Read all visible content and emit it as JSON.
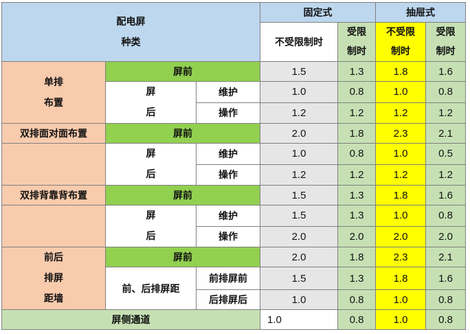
{
  "header": {
    "type_line1": "配电屏",
    "type_line2": "种类",
    "fixed": "固定式",
    "drawer": "抽屉式",
    "unlimited": "不受限制时",
    "limited_line1": "受限",
    "limited_line2": "制时",
    "unlimited2_line1": "不受限",
    "unlimited2_line2": "制时",
    "limited2_line1": "受限",
    "limited2_line2": "制时"
  },
  "labels": {
    "front": "屏前",
    "back_1": "屏",
    "back_2": "后",
    "maintain": "维护",
    "operate": "操作"
  },
  "groups": {
    "single": {
      "line1": "单排",
      "line2": "布置"
    },
    "face_to_face": "双排面对面布置",
    "back_to_back": "双排背靠背布置",
    "wall": {
      "line1": "前后",
      "line2": "排屏",
      "line3": "距墙",
      "between": "前、后排屏距",
      "front_row": "前排屏前",
      "back_row": "后排屏后"
    },
    "side": "屏侧通道"
  },
  "rows": [
    [
      "1.5",
      "1.3",
      "1.8",
      "1.6"
    ],
    [
      "1.0",
      "0.8",
      "1.0",
      "0.8"
    ],
    [
      "1.2",
      "1.2",
      "1.2",
      "1.2"
    ],
    [
      "2.0",
      "1.8",
      "2.3",
      "2.1"
    ],
    [
      "1.0",
      "0.8",
      "1.0",
      "0.5"
    ],
    [
      "1.2",
      "1.2",
      "1.2",
      "1.2"
    ],
    [
      "1.5",
      "1.3",
      "1.8",
      "1.6"
    ],
    [
      "1.5",
      "1.3",
      "1.0",
      "0.8"
    ],
    [
      "2.0",
      "2.0",
      "2.0",
      "2.0"
    ],
    [
      "2.0",
      "1.8",
      "2.3",
      "2.1"
    ],
    [
      "1.5",
      "1.3",
      "1.8",
      "1.6"
    ],
    [
      "1.0",
      "0.8",
      "1.0",
      "0.8"
    ],
    [
      "1.0",
      "0.8",
      "1.0",
      "0.8"
    ]
  ]
}
